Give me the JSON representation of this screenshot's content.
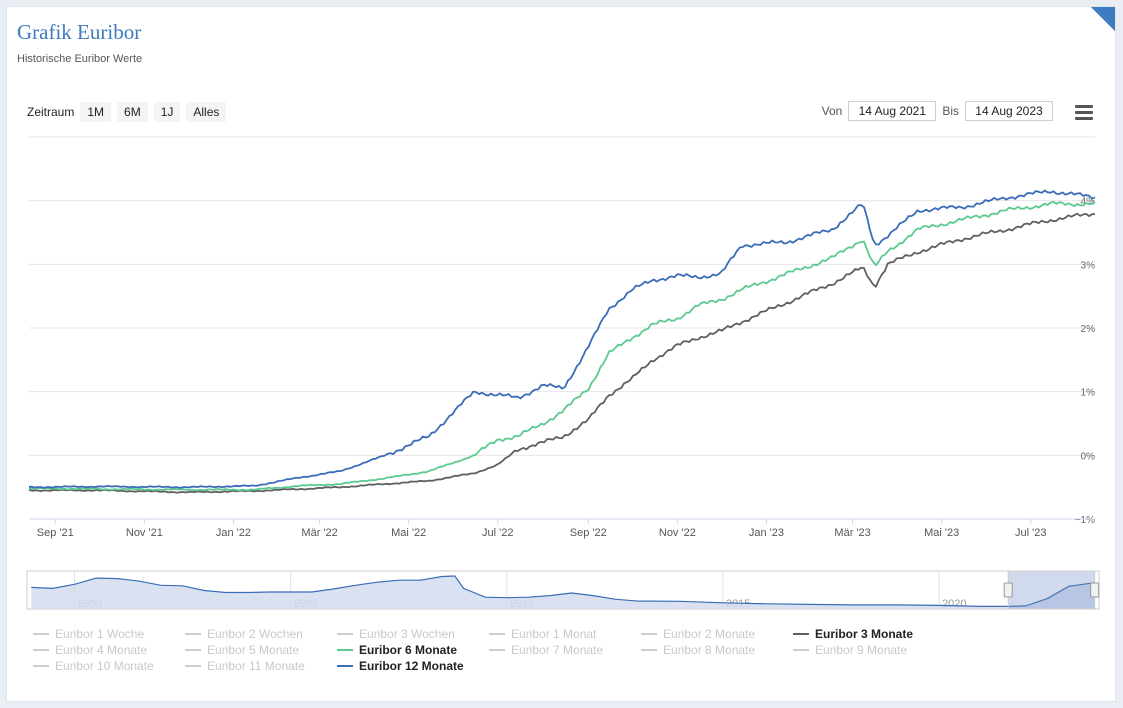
{
  "header": {
    "title": "Grafik Euribor",
    "subtitle": "Historische Euribor Werte"
  },
  "range_selector": {
    "label": "Zeitraum",
    "buttons": [
      "1M",
      "6M",
      "1J",
      "Alles"
    ]
  },
  "date_range": {
    "from_label": "Von",
    "from_value": "14 Aug 2021",
    "to_label": "Bis",
    "to_value": "14 Aug 2023"
  },
  "colors": {
    "series_3m": "#606060",
    "series_6m": "#5cc98f",
    "series_12m": "#3a6cb8",
    "navigator_fill": "#d3ddef",
    "navigator_line": "#3a6cb8"
  },
  "chart_data": {
    "type": "line",
    "x_ticks": [
      "Sep '21",
      "Nov '21",
      "Jan '22",
      "Mär '22",
      "Mai '22",
      "Jul '22",
      "Sep '22",
      "Nov '22",
      "Jan '23",
      "Mär '23",
      "Mai '23",
      "Jul '23"
    ],
    "y_ticks": [
      "−1%",
      "0%",
      "1%",
      "2%",
      "3%",
      "4%"
    ],
    "ylim": [
      -1,
      5
    ],
    "xlim": [
      "2021-08-14",
      "2023-08-14"
    ],
    "grid": true,
    "series": [
      {
        "name": "Euribor 3 Monate",
        "color": "#606060",
        "points": [
          [
            "2021-08-14",
            -0.55
          ],
          [
            "2021-10-01",
            -0.55
          ],
          [
            "2021-12-01",
            -0.58
          ],
          [
            "2022-01-15",
            -0.56
          ],
          [
            "2022-02-15",
            -0.53
          ],
          [
            "2022-03-15",
            -0.5
          ],
          [
            "2022-04-15",
            -0.45
          ],
          [
            "2022-05-15",
            -0.4
          ],
          [
            "2022-06-15",
            -0.28
          ],
          [
            "2022-07-01",
            -0.15
          ],
          [
            "2022-07-15",
            0.1
          ],
          [
            "2022-08-01",
            0.2
          ],
          [
            "2022-08-15",
            0.3
          ],
          [
            "2022-09-01",
            0.55
          ],
          [
            "2022-09-15",
            0.95
          ],
          [
            "2022-10-01",
            1.2
          ],
          [
            "2022-10-15",
            1.5
          ],
          [
            "2022-11-01",
            1.72
          ],
          [
            "2022-11-15",
            1.85
          ],
          [
            "2022-12-01",
            1.95
          ],
          [
            "2022-12-15",
            2.1
          ],
          [
            "2023-01-15",
            2.4
          ],
          [
            "2023-02-15",
            2.7
          ],
          [
            "2023-03-08",
            2.95
          ],
          [
            "2023-03-16",
            2.65
          ],
          [
            "2023-03-25",
            3.0
          ],
          [
            "2023-04-15",
            3.2
          ],
          [
            "2023-05-15",
            3.4
          ],
          [
            "2023-06-15",
            3.55
          ],
          [
            "2023-07-15",
            3.7
          ],
          [
            "2023-08-14",
            3.8
          ]
        ]
      },
      {
        "name": "Euribor 6 Monate",
        "color": "#5cc98f",
        "points": [
          [
            "2021-08-14",
            -0.52
          ],
          [
            "2021-10-01",
            -0.53
          ],
          [
            "2021-12-01",
            -0.54
          ],
          [
            "2022-01-15",
            -0.54
          ],
          [
            "2022-02-15",
            -0.48
          ],
          [
            "2022-03-15",
            -0.45
          ],
          [
            "2022-04-15",
            -0.36
          ],
          [
            "2022-05-15",
            -0.25
          ],
          [
            "2022-06-15",
            0.0
          ],
          [
            "2022-07-01",
            0.25
          ],
          [
            "2022-07-15",
            0.3
          ],
          [
            "2022-08-01",
            0.5
          ],
          [
            "2022-08-15",
            0.7
          ],
          [
            "2022-09-01",
            1.05
          ],
          [
            "2022-09-15",
            1.6
          ],
          [
            "2022-10-01",
            1.85
          ],
          [
            "2022-10-15",
            2.05
          ],
          [
            "2022-11-01",
            2.15
          ],
          [
            "2022-11-15",
            2.35
          ],
          [
            "2022-12-01",
            2.45
          ],
          [
            "2022-12-15",
            2.6
          ],
          [
            "2023-01-15",
            2.85
          ],
          [
            "2023-02-15",
            3.1
          ],
          [
            "2023-03-08",
            3.4
          ],
          [
            "2023-03-16",
            2.95
          ],
          [
            "2023-03-25",
            3.2
          ],
          [
            "2023-04-15",
            3.55
          ],
          [
            "2023-05-15",
            3.7
          ],
          [
            "2023-06-15",
            3.85
          ],
          [
            "2023-07-15",
            3.95
          ],
          [
            "2023-08-14",
            3.95
          ]
        ]
      },
      {
        "name": "Euribor 12 Monate",
        "color": "#3a6cb8",
        "points": [
          [
            "2021-08-14",
            -0.5
          ],
          [
            "2021-10-01",
            -0.49
          ],
          [
            "2021-12-01",
            -0.5
          ],
          [
            "2022-01-15",
            -0.48
          ],
          [
            "2022-02-15",
            -0.35
          ],
          [
            "2022-03-15",
            -0.25
          ],
          [
            "2022-04-15",
            0.0
          ],
          [
            "2022-05-15",
            0.3
          ],
          [
            "2022-06-15",
            1.0
          ],
          [
            "2022-07-01",
            0.95
          ],
          [
            "2022-07-15",
            0.9
          ],
          [
            "2022-08-01",
            1.1
          ],
          [
            "2022-08-15",
            1.05
          ],
          [
            "2022-09-01",
            1.7
          ],
          [
            "2022-09-15",
            2.3
          ],
          [
            "2022-10-01",
            2.6
          ],
          [
            "2022-10-15",
            2.75
          ],
          [
            "2022-11-01",
            2.82
          ],
          [
            "2022-11-15",
            2.8
          ],
          [
            "2022-12-01",
            2.85
          ],
          [
            "2022-12-15",
            3.3
          ],
          [
            "2023-01-15",
            3.35
          ],
          [
            "2023-02-15",
            3.55
          ],
          [
            "2023-03-08",
            3.95
          ],
          [
            "2023-03-16",
            3.3
          ],
          [
            "2023-03-25",
            3.45
          ],
          [
            "2023-04-15",
            3.85
          ],
          [
            "2023-05-15",
            3.9
          ],
          [
            "2023-06-15",
            4.05
          ],
          [
            "2023-07-15",
            4.15
          ],
          [
            "2023-08-14",
            4.05
          ]
        ]
      }
    ]
  },
  "navigator": {
    "year_labels": [
      "2000",
      "2005",
      "2010",
      "2015",
      "2020"
    ],
    "points": [
      [
        1999,
        3.2
      ],
      [
        1999.5,
        3.0
      ],
      [
        2000,
        3.8
      ],
      [
        2000.5,
        5.0
      ],
      [
        2001,
        4.9
      ],
      [
        2001.5,
        4.4
      ],
      [
        2002,
        3.6
      ],
      [
        2002.5,
        3.5
      ],
      [
        2003,
        2.6
      ],
      [
        2003.5,
        2.2
      ],
      [
        2004,
        2.2
      ],
      [
        2004.5,
        2.3
      ],
      [
        2005,
        2.3
      ],
      [
        2005.5,
        2.3
      ],
      [
        2006,
        2.9
      ],
      [
        2006.5,
        3.6
      ],
      [
        2007,
        4.2
      ],
      [
        2007.5,
        4.6
      ],
      [
        2008,
        4.6
      ],
      [
        2008.5,
        5.3
      ],
      [
        2008.8,
        5.4
      ],
      [
        2009,
        3.0
      ],
      [
        2009.5,
        1.3
      ],
      [
        2010,
        1.2
      ],
      [
        2010.5,
        1.3
      ],
      [
        2011,
        1.6
      ],
      [
        2011.5,
        2.1
      ],
      [
        2012,
        1.6
      ],
      [
        2012.5,
        0.9
      ],
      [
        2013,
        0.55
      ],
      [
        2014,
        0.5
      ],
      [
        2015,
        0.2
      ],
      [
        2016,
        0.0
      ],
      [
        2017,
        -0.1
      ],
      [
        2018,
        -0.2
      ],
      [
        2019,
        -0.2
      ],
      [
        2020,
        -0.3
      ],
      [
        2021,
        -0.5
      ],
      [
        2021.6,
        -0.5
      ],
      [
        2022,
        -0.4
      ],
      [
        2022.5,
        1.0
      ],
      [
        2023,
        3.4
      ],
      [
        2023.6,
        4.1
      ]
    ],
    "range_start_year": 2021.6,
    "range_end_year": 2023.6
  },
  "legend": [
    {
      "label": "Euribor 1 Woche",
      "active": false
    },
    {
      "label": "Euribor 2 Wochen",
      "active": false
    },
    {
      "label": "Euribor 3 Wochen",
      "active": false
    },
    {
      "label": "Euribor 1 Monat",
      "active": false
    },
    {
      "label": "Euribor 2 Monate",
      "active": false
    },
    {
      "label": "Euribor 3 Monate",
      "active": true,
      "color": "#606060"
    },
    {
      "label": "Euribor 4 Monate",
      "active": false
    },
    {
      "label": "Euribor 5 Monate",
      "active": false
    },
    {
      "label": "Euribor 6 Monate",
      "active": true,
      "color": "#5cc98f"
    },
    {
      "label": "Euribor 7 Monate",
      "active": false
    },
    {
      "label": "Euribor 8 Monate",
      "active": false
    },
    {
      "label": "Euribor 9 Monate",
      "active": false
    },
    {
      "label": "Euribor 10 Monate",
      "active": false
    },
    {
      "label": "Euribor 11 Monate",
      "active": false
    },
    {
      "label": "Euribor 12 Monate",
      "active": true,
      "color": "#3a6cb8"
    }
  ]
}
